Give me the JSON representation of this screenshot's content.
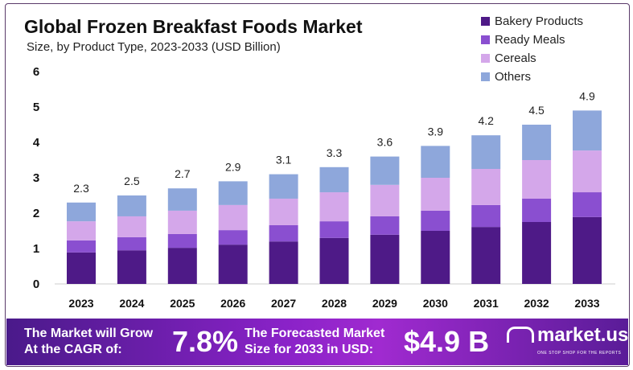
{
  "chart_data": {
    "type": "bar",
    "stacked": true,
    "title": "Global Frozen Breakfast Foods Market",
    "subtitle": "Size, by Product Type, 2023-2033 (USD Billion)",
    "categories": [
      "2023",
      "2024",
      "2025",
      "2026",
      "2027",
      "2028",
      "2029",
      "2030",
      "2031",
      "2032",
      "2033"
    ],
    "series": [
      {
        "name": "Bakery Products",
        "color": "#4e1a87",
        "values": [
          0.89,
          0.95,
          1.02,
          1.11,
          1.2,
          1.3,
          1.39,
          1.5,
          1.61,
          1.75,
          1.89
        ]
      },
      {
        "name": "Ready Meals",
        "color": "#8a4fd0",
        "values": [
          0.34,
          0.37,
          0.39,
          0.41,
          0.46,
          0.47,
          0.52,
          0.57,
          0.62,
          0.66,
          0.7
        ]
      },
      {
        "name": "Cereals",
        "color": "#d4a7ea",
        "values": [
          0.54,
          0.59,
          0.66,
          0.71,
          0.75,
          0.82,
          0.89,
          0.93,
          1.02,
          1.09,
          1.18
        ]
      },
      {
        "name": "Others",
        "color": "#8ea7db",
        "values": [
          0.53,
          0.59,
          0.63,
          0.67,
          0.69,
          0.71,
          0.8,
          0.9,
          0.95,
          1.0,
          1.13
        ]
      }
    ],
    "totals": [
      "2.3",
      "2.5",
      "2.7",
      "2.9",
      "3.1",
      "3.3",
      "3.6",
      "3.9",
      "4.2",
      "4.5",
      "4.9"
    ],
    "ylim": [
      0,
      6
    ],
    "yticks": [
      "0",
      "1",
      "2",
      "3",
      "4",
      "5",
      "6"
    ],
    "grid": false,
    "legend": "top-right"
  },
  "footer": {
    "cagr_text_1": "The Market will Grow",
    "cagr_text_2": "At the CAGR of:",
    "cagr": "7.8%",
    "forecast_text_1": "The Forecasted Market",
    "forecast_text_2": "Size for 2033 in USD:",
    "forecast": "$4.9 B",
    "logo": "market.us",
    "tagline": "ONE STOP SHOP FOR THE REPORTS"
  }
}
